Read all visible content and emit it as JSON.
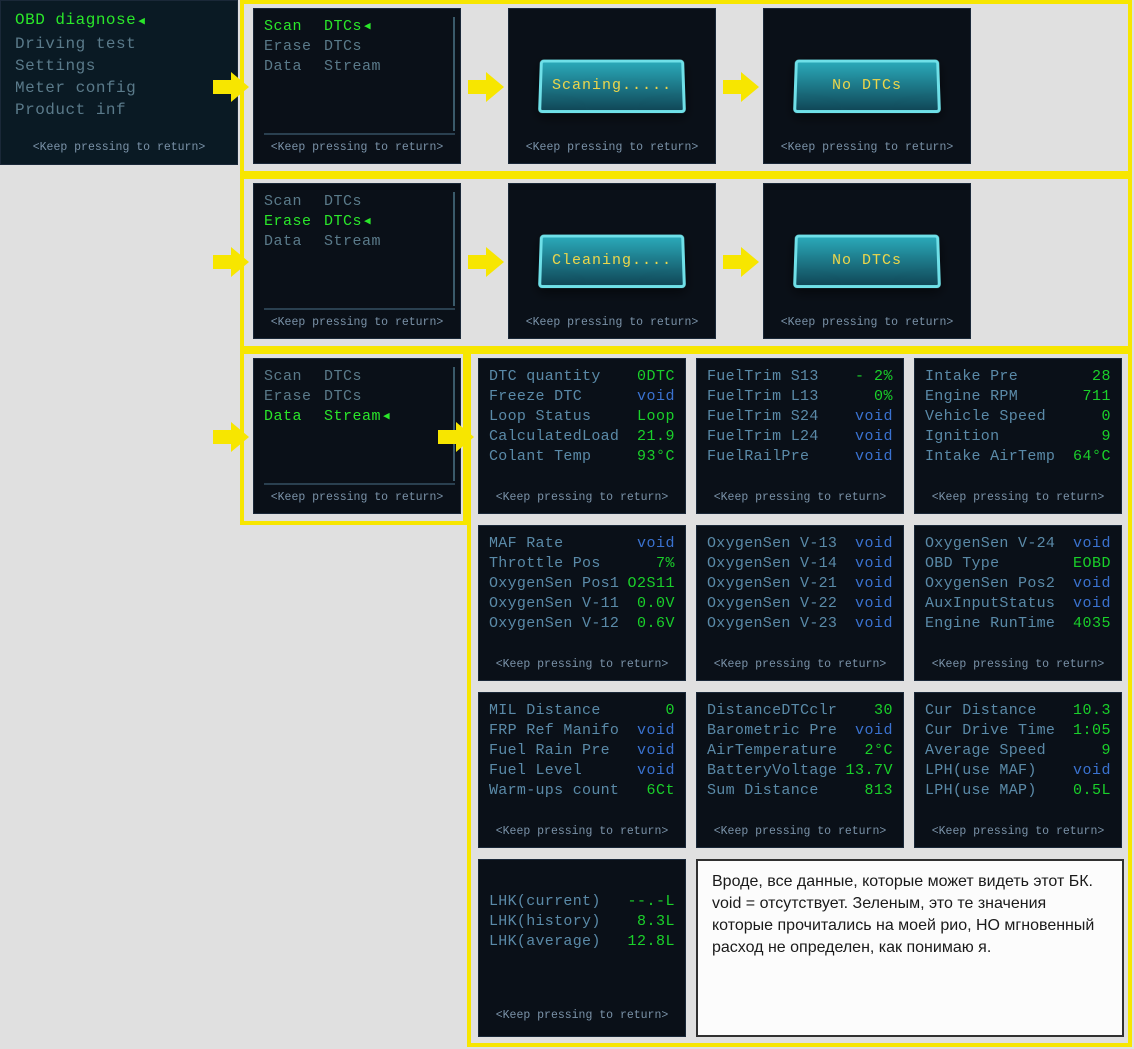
{
  "footer": "<Keep pressing to return>",
  "colors": {
    "green": "#2ae62a",
    "blue": "#3a72d0",
    "label": "#5a8aa8",
    "yellow_border": "#f7e600"
  },
  "screen_main": {
    "items": [
      {
        "label": "OBD diagnose",
        "active": true
      },
      {
        "label": "Driving test",
        "active": false
      },
      {
        "label": "Settings",
        "active": false
      },
      {
        "label": "Meter config",
        "active": false
      },
      {
        "label": "Product  inf",
        "active": false
      }
    ]
  },
  "row1": {
    "menu": {
      "items": [
        {
          "l": "Scan",
          "r": "DTCs",
          "active": true
        },
        {
          "l": "Erase",
          "r": "DTCs",
          "active": false
        },
        {
          "l": "Data",
          "r": "Stream",
          "active": false
        }
      ]
    },
    "popup1": "Scaning.....",
    "popup2": "No  DTCs"
  },
  "row2": {
    "menu": {
      "items": [
        {
          "l": "Scan",
          "r": "DTCs",
          "active": false
        },
        {
          "l": "Erase",
          "r": "DTCs",
          "active": true
        },
        {
          "l": "Data",
          "r": "Stream",
          "active": false
        }
      ]
    },
    "popup1": "Cleaning....",
    "popup2": "No  DTCs"
  },
  "row3": {
    "menu": {
      "items": [
        {
          "l": "Scan",
          "r": "DTCs",
          "active": false
        },
        {
          "l": "Erase",
          "r": "DTCs",
          "active": false
        },
        {
          "l": "Data",
          "r": "Stream",
          "active": true
        }
      ]
    }
  },
  "data": {
    "s1": [
      {
        "l": "DTC quantity",
        "v": "0DTC",
        "c": "green"
      },
      {
        "l": "Freeze DTC",
        "v": "void",
        "c": "blue"
      },
      {
        "l": "Loop Status",
        "v": "Loop",
        "c": "green"
      },
      {
        "l": "CalculatedLoad",
        "v": "21.9",
        "c": "green"
      },
      {
        "l": "Colant Temp",
        "v": "93°C",
        "c": "green"
      }
    ],
    "s2": [
      {
        "l": "FuelTrim S13",
        "v": "- 2%",
        "c": "green"
      },
      {
        "l": "FuelTrim L13",
        "v": "0%",
        "c": "green"
      },
      {
        "l": "FuelTrim S24",
        "v": "void",
        "c": "blue"
      },
      {
        "l": "FuelTrim L24",
        "v": "void",
        "c": "blue"
      },
      {
        "l": "FuelRailPre",
        "v": "void",
        "c": "blue"
      }
    ],
    "s3": [
      {
        "l": "Intake  Pre",
        "v": "28",
        "c": "green"
      },
      {
        "l": "Engine RPM",
        "v": "711",
        "c": "green"
      },
      {
        "l": "Vehicle Speed",
        "v": "0",
        "c": "green"
      },
      {
        "l": "Ignition",
        "v": "9",
        "c": "green"
      },
      {
        "l": "Intake AirTemp",
        "v": "64°C",
        "c": "green"
      }
    ],
    "s4": [
      {
        "l": "MAF Rate",
        "v": "void",
        "c": "blue"
      },
      {
        "l": "Throttle Pos",
        "v": "7%",
        "c": "green"
      },
      {
        "l": "OxygenSen Pos1",
        "v": "O2S11",
        "c": "green"
      },
      {
        "l": "OxygenSen V-11",
        "v": "0.0V",
        "c": "green"
      },
      {
        "l": "OxygenSen V-12",
        "v": "0.6V",
        "c": "green"
      }
    ],
    "s5": [
      {
        "l": "OxygenSen V-13",
        "v": "void",
        "c": "blue"
      },
      {
        "l": "OxygenSen V-14",
        "v": "void",
        "c": "blue"
      },
      {
        "l": "OxygenSen V-21",
        "v": "void",
        "c": "blue"
      },
      {
        "l": "OxygenSen V-22",
        "v": "void",
        "c": "blue"
      },
      {
        "l": "OxygenSen V-23",
        "v": "void",
        "c": "blue"
      }
    ],
    "s6": [
      {
        "l": "OxygenSen V-24",
        "v": "void",
        "c": "blue"
      },
      {
        "l": "OBD Type",
        "v": "EOBD",
        "c": "green"
      },
      {
        "l": "OxygenSen Pos2",
        "v": "void",
        "c": "blue"
      },
      {
        "l": "AuxInputStatus",
        "v": "void",
        "c": "blue"
      },
      {
        "l": "Engine RunTime",
        "v": "4035",
        "c": "green"
      }
    ],
    "s7": [
      {
        "l": "MIL  Distance",
        "v": "0",
        "c": "green"
      },
      {
        "l": "FRP Ref Manifo",
        "v": "void",
        "c": "blue"
      },
      {
        "l": "Fuel Rain Pre",
        "v": "void",
        "c": "blue"
      },
      {
        "l": "Fuel Level",
        "v": "void",
        "c": "blue"
      },
      {
        "l": "Warm-ups count",
        "v": "6Ct",
        "c": "green"
      }
    ],
    "s8": [
      {
        "l": "DistanceDTCclr",
        "v": "30",
        "c": "green"
      },
      {
        "l": "Barometric Pre",
        "v": "void",
        "c": "blue"
      },
      {
        "l": "AirTemperature",
        "v": "2°C",
        "c": "green"
      },
      {
        "l": "BatteryVoltage",
        "v": "13.7V",
        "c": "green"
      },
      {
        "l": "Sum Distance",
        "v": "813",
        "c": "green"
      }
    ],
    "s9": [
      {
        "l": "Cur Distance",
        "v": "10.3",
        "c": "green"
      },
      {
        "l": "Cur Drive Time",
        "v": "1:05",
        "c": "green"
      },
      {
        "l": "Average Speed",
        "v": "9",
        "c": "green"
      },
      {
        "l": "LPH(use MAF)",
        "v": "void",
        "c": "blue"
      },
      {
        "l": "LPH(use MAP)",
        "v": "0.5L",
        "c": "green"
      }
    ],
    "s10": [
      {
        "l": "LHK(current)",
        "v": "--.-L",
        "c": "green"
      },
      {
        "l": "LHK(history)",
        "v": "8.3L",
        "c": "green"
      },
      {
        "l": "LHK(average)",
        "v": "12.8L",
        "c": "green"
      }
    ]
  },
  "note": "Вроде, все данные, которые может видеть этот БК.\nvoid = отсутствует. Зеленым, это те значения которые прочитались на моей рио, НО мгновенный расход не определен, как понимаю я."
}
